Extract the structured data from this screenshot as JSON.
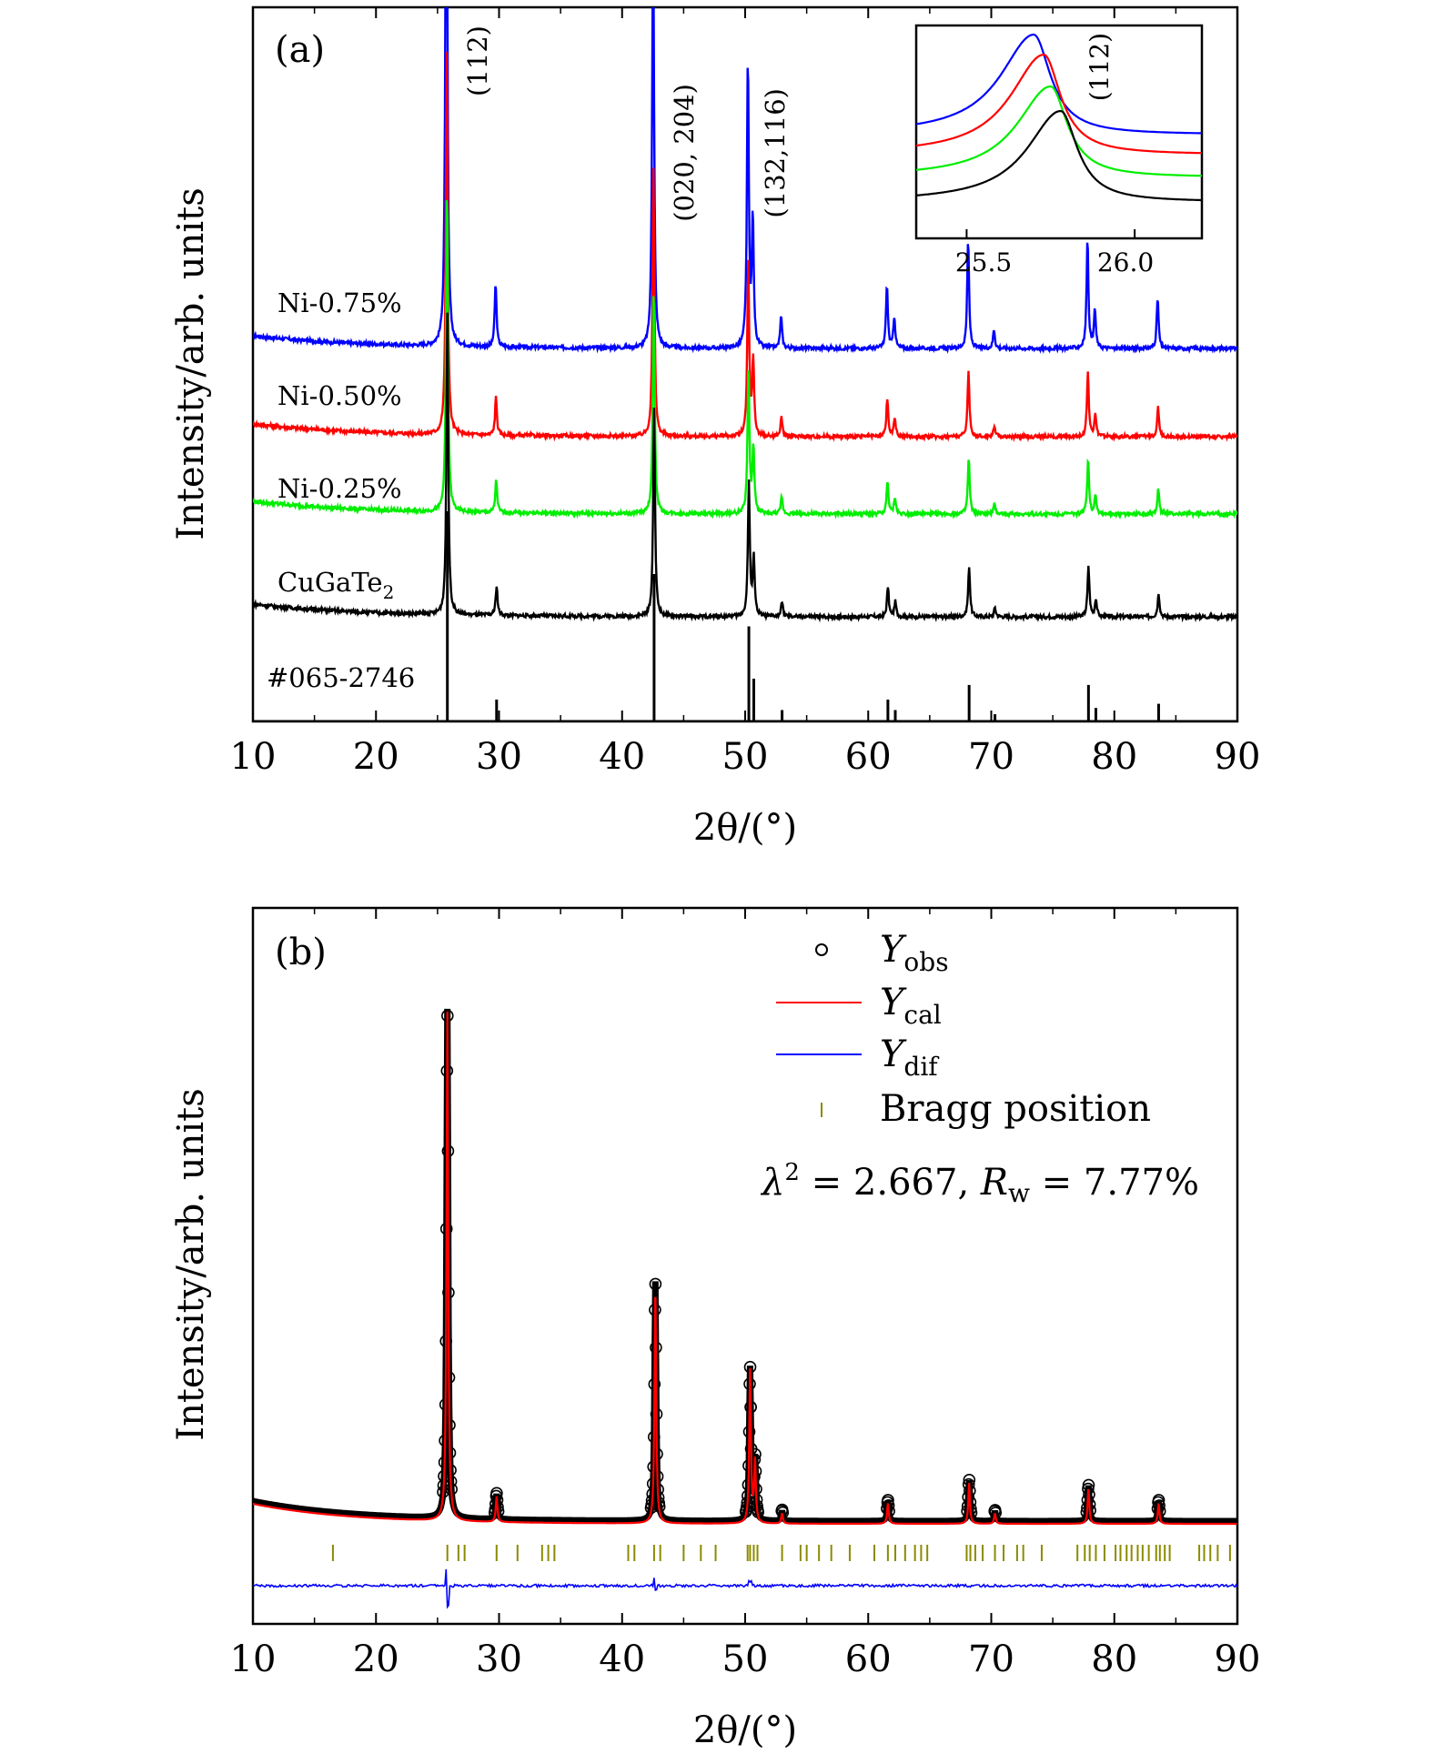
{
  "chart_data": [
    {
      "type": "line",
      "panel_label": "(a)",
      "xlabel": "2θ/(°)",
      "ylabel": "Intensity/arb. units",
      "xlim": [
        10,
        90
      ],
      "xticks": [
        10,
        20,
        30,
        40,
        50,
        60,
        70,
        80,
        90
      ],
      "peak_labels": [
        {
          "text": "(112)",
          "x": 25.8
        },
        {
          "text": "(020, 204)",
          "x": 42.6
        },
        {
          "text": "(132,116)",
          "x": 50.4
        }
      ],
      "peaks": [
        {
          "x": 25.8,
          "h": 1.0
        },
        {
          "x": 29.8,
          "h": 0.1
        },
        {
          "x": 42.6,
          "h": 0.7
        },
        {
          "x": 50.3,
          "h": 0.45
        },
        {
          "x": 50.7,
          "h": 0.2
        },
        {
          "x": 53.0,
          "h": 0.05
        },
        {
          "x": 61.6,
          "h": 0.1
        },
        {
          "x": 62.2,
          "h": 0.05
        },
        {
          "x": 68.2,
          "h": 0.17
        },
        {
          "x": 70.3,
          "h": 0.03
        },
        {
          "x": 77.9,
          "h": 0.17
        },
        {
          "x": 78.5,
          "h": 0.06
        },
        {
          "x": 83.6,
          "h": 0.08
        }
      ],
      "series": [
        {
          "name": "Ni-0.75%",
          "color": "#0000ff",
          "display_label": "Ni-0.75%"
        },
        {
          "name": "Ni-0.50%",
          "color": "#ff0000",
          "display_label": "Ni-0.50%"
        },
        {
          "name": "Ni-0.25%",
          "color": "#00ee00",
          "display_label": "Ni-0.25%"
        },
        {
          "name": "CuGaTe2",
          "color": "#000000",
          "display_label": "CuGaTe",
          "display_sub": "2"
        },
        {
          "name": "#065-2746",
          "color": "#000000",
          "display_label": "#065-2746",
          "style": "sticks"
        }
      ],
      "inset": {
        "label": "(112)",
        "xlim": [
          25.35,
          26.2
        ],
        "xticks": [
          25.5,
          26.0
        ],
        "tick_labels": [
          "25.5",
          "26.0"
        ],
        "peak_positions": [
          {
            "series": "Ni-0.75%",
            "x": 25.7
          },
          {
            "series": "Ni-0.50%",
            "x": 25.73
          },
          {
            "series": "Ni-0.25%",
            "x": 25.75
          },
          {
            "series": "CuGaTe2",
            "x": 25.78
          }
        ]
      }
    },
    {
      "type": "line",
      "panel_label": "(b)",
      "xlabel": "2θ/(°)",
      "ylabel": "Intensity/arb. units",
      "xlim": [
        10,
        90
      ],
      "xticks": [
        10,
        20,
        30,
        40,
        50,
        60,
        70,
        80,
        90
      ],
      "legend_position": "top-right",
      "legend": [
        {
          "label": "Y",
          "sub": "obs",
          "style": "circle",
          "color": "#000000"
        },
        {
          "label": "Y",
          "sub": "cal",
          "style": "line",
          "color": "#ff0000"
        },
        {
          "label": "Y",
          "sub": "dif",
          "style": "line",
          "color": "#0000ff"
        },
        {
          "label": "Bragg position",
          "style": "tick",
          "color": "#8b8b00"
        }
      ],
      "fit_stats": {
        "lambda_text": "λ",
        "lambda_sup": "2",
        "chi2": "2.667",
        "r_label": "R",
        "r_sub": "w",
        "rw": "7.77%"
      },
      "peaks": [
        {
          "x": 25.8,
          "h": 1.0
        },
        {
          "x": 29.8,
          "h": 0.05
        },
        {
          "x": 42.7,
          "h": 0.47
        },
        {
          "x": 50.4,
          "h": 0.3
        },
        {
          "x": 50.8,
          "h": 0.12
        },
        {
          "x": 53.0,
          "h": 0.02
        },
        {
          "x": 61.6,
          "h": 0.04
        },
        {
          "x": 68.2,
          "h": 0.08
        },
        {
          "x": 70.3,
          "h": 0.02
        },
        {
          "x": 77.9,
          "h": 0.07
        },
        {
          "x": 83.6,
          "h": 0.04
        }
      ],
      "bragg_positions": [
        16.5,
        25.8,
        26.7,
        27.2,
        29.8,
        31.5,
        33.5,
        34.0,
        34.5,
        40.5,
        41.0,
        42.6,
        43.1,
        45.0,
        46.4,
        47.6,
        50.2,
        50.4,
        50.7,
        51.0,
        53.0,
        54.5,
        55.0,
        56.0,
        57.0,
        58.5,
        60.5,
        61.6,
        62.2,
        63.0,
        63.8,
        64.3,
        64.8,
        68.0,
        68.3,
        68.7,
        69.3,
        70.3,
        71.0,
        72.1,
        72.6,
        74.1,
        77.0,
        77.6,
        78.0,
        78.5,
        79.2,
        80.1,
        80.5,
        81.0,
        81.4,
        81.9,
        82.3,
        82.8,
        83.4,
        83.7,
        84.1,
        84.5,
        86.9,
        87.3,
        87.8,
        88.4,
        89.4
      ]
    }
  ]
}
